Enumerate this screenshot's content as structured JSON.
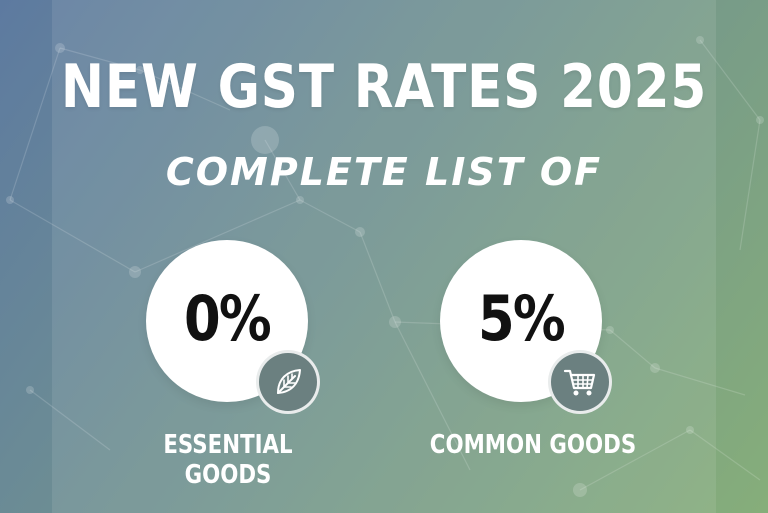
{
  "title": "NEW GST RATES 2025",
  "subtitle": "COMPLETE LIST OF",
  "rates": [
    {
      "value": "0%",
      "label": "ESSENTIAL GOODS",
      "icon": "leaf-icon"
    },
    {
      "value": "5%",
      "label": "COMMON GOODS",
      "icon": "shopping-cart-icon"
    }
  ],
  "colors": {
    "background_start": "#5d7aa0",
    "background_end": "#86ae7a",
    "text": "#ffffff",
    "circle": "#ffffff",
    "rate_text": "#111111",
    "badge": "#6b8080"
  }
}
